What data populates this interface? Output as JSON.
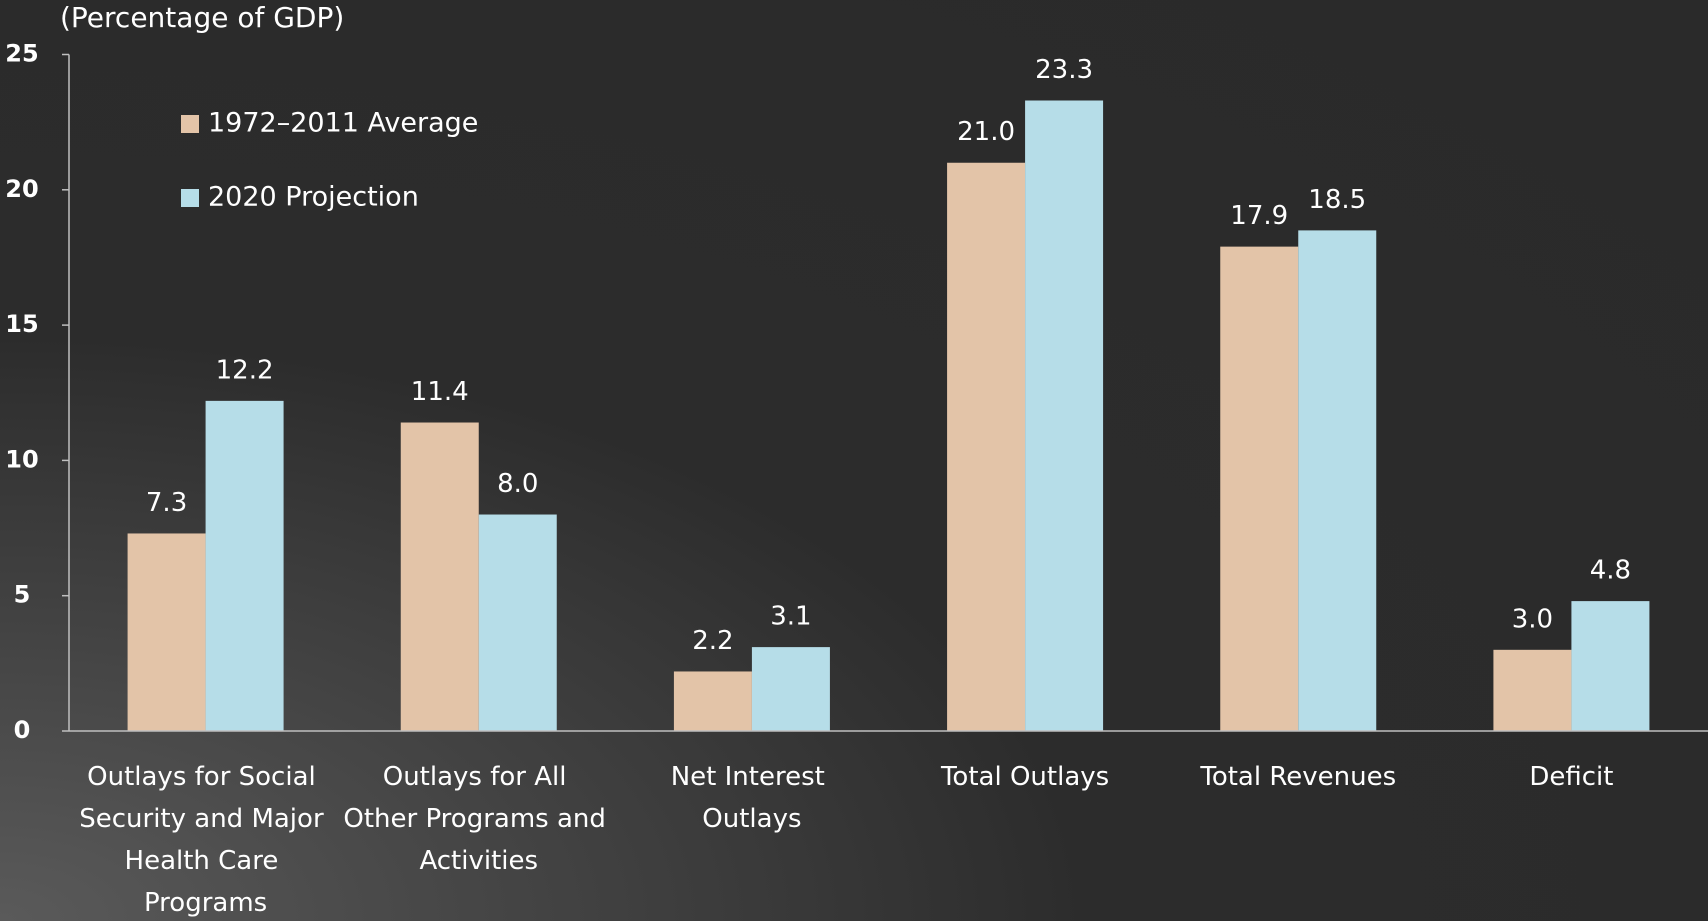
{
  "chart_data": {
    "type": "bar",
    "subtitle": "(Percentage of GDP)",
    "categories": [
      "Outlays for Social Security and Major Health Care Programs",
      "Outlays for All Other Programs and Activities",
      "Net Interest Outlays",
      "Total Outlays",
      "Total Revenues",
      "Deficit"
    ],
    "series": [
      {
        "name": "1972–2011 Average",
        "color": "#e3c4a8",
        "values": [
          7.3,
          11.4,
          2.2,
          21,
          17.9,
          3
        ],
        "value_labels": [
          "7.3",
          "11.4",
          "2.2",
          "21.0",
          "17.9",
          "3.0"
        ]
      },
      {
        "name": "2020 Projection",
        "color": "#b6dde8",
        "values": [
          12.2,
          8,
          3.1,
          23.3,
          18.5,
          4.8
        ],
        "value_labels": [
          "12.2",
          "8.0",
          "3.1",
          "23.3",
          "18.5",
          "4.8"
        ]
      }
    ],
    "ylim": [
      0,
      25
    ],
    "yticks": [
      0,
      5,
      10,
      15,
      20,
      25
    ],
    "legend": "upper left"
  }
}
